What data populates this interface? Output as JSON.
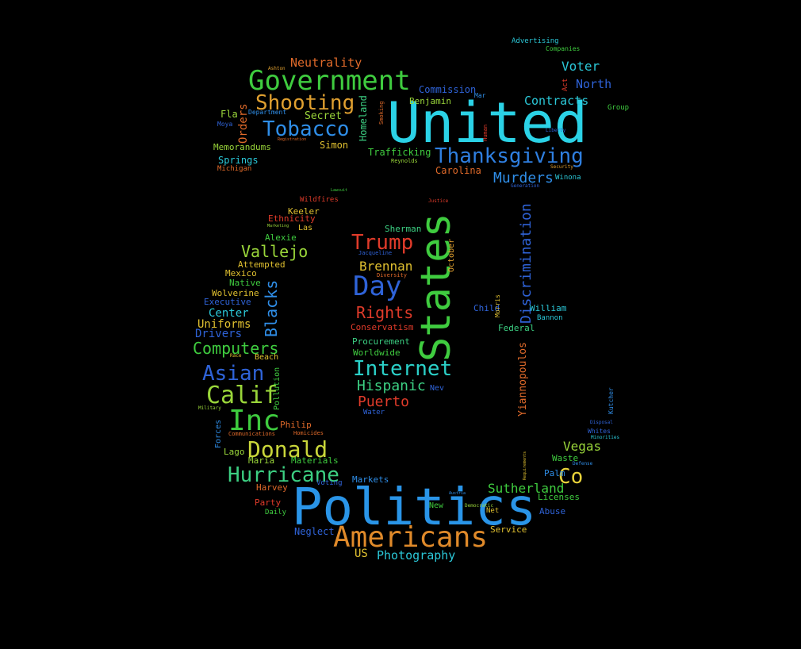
{
  "words": [
    {
      "text": "United",
      "color": "#2bd2e6"
    },
    {
      "text": "Politics",
      "color": "#2a95e8"
    },
    {
      "text": "States",
      "color": "#3fcc3f"
    },
    {
      "text": "Government",
      "color": "#3fcc3f"
    },
    {
      "text": "Americans",
      "color": "#e08a2a"
    },
    {
      "text": "Thanksgiving",
      "color": "#2f7fe0"
    },
    {
      "text": "Inc",
      "color": "#3fcc3f"
    },
    {
      "text": "Day",
      "color": "#2f63d8"
    },
    {
      "text": "Tobacco",
      "color": "#2f8ee8"
    },
    {
      "text": "Shooting",
      "color": "#e0a030"
    },
    {
      "text": "Hurricane",
      "color": "#3ccf82"
    },
    {
      "text": "Donald",
      "color": "#c9d63a"
    },
    {
      "text": "Internet",
      "color": "#2bd0c8"
    },
    {
      "text": "Calif",
      "color": "#9ad63a"
    },
    {
      "text": "Asian",
      "color": "#2f63d8"
    },
    {
      "text": "Trump",
      "color": "#e03b2a"
    },
    {
      "text": "Co",
      "color": "#e8d23a"
    },
    {
      "text": "Discrimination",
      "color": "#2f63d8"
    },
    {
      "text": "Computers",
      "color": "#3fcc3f"
    },
    {
      "text": "Vallejo",
      "color": "#9ad63a"
    },
    {
      "text": "Blacks",
      "color": "#2f8ee8"
    },
    {
      "text": "Rights",
      "color": "#e03b2a"
    },
    {
      "text": "Hispanic",
      "color": "#3ccf82"
    },
    {
      "text": "Puerto",
      "color": "#e03b2a"
    },
    {
      "text": "Murders",
      "color": "#2f8ee8"
    },
    {
      "text": "Contracts",
      "color": "#2bc8d8"
    },
    {
      "text": "Neutrality",
      "color": "#e06a2a"
    },
    {
      "text": "Sutherland",
      "color": "#3fcc3f"
    },
    {
      "text": "Brennan",
      "color": "#e0c030"
    },
    {
      "text": "Vegas",
      "color": "#9ad63a"
    },
    {
      "text": "Voter",
      "color": "#2bc8d8"
    },
    {
      "text": "North",
      "color": "#2f63d8"
    },
    {
      "text": "Photography",
      "color": "#2bc8d8"
    },
    {
      "text": "Yiannopoulos",
      "color": "#e06a2a"
    },
    {
      "text": "Uniforms",
      "color": "#e0c030"
    },
    {
      "text": "Center",
      "color": "#2bc8d8"
    },
    {
      "text": "Drivers",
      "color": "#2f63d8"
    },
    {
      "text": "Orders",
      "color": "#e06a2a"
    },
    {
      "text": "Secret",
      "color": "#9ad63a"
    },
    {
      "text": "Simon",
      "color": "#e0c030"
    },
    {
      "text": "Carolina",
      "color": "#e06a2a"
    },
    {
      "text": "Commission",
      "color": "#2f63d8"
    },
    {
      "text": "Benjamin",
      "color": "#9ad63a"
    },
    {
      "text": "Trafficking",
      "color": "#3fcc3f"
    },
    {
      "text": "Homeland",
      "color": "#3ccf82"
    },
    {
      "text": "Memorandums",
      "color": "#9ad63a"
    },
    {
      "text": "Springs",
      "color": "#2bc8d8"
    },
    {
      "text": "Fla",
      "color": "#9ad63a"
    },
    {
      "text": "Sherman",
      "color": "#3ccf82"
    },
    {
      "text": "Keeler",
      "color": "#e0c030"
    },
    {
      "text": "Ethnicity",
      "color": "#e03b2a"
    },
    {
      "text": "Las",
      "color": "#e0c030"
    },
    {
      "text": "Alexie",
      "color": "#3fcc3f"
    },
    {
      "text": "Attempted",
      "color": "#e0c030"
    },
    {
      "text": "Mexico",
      "color": "#e0c030"
    },
    {
      "text": "Native",
      "color": "#3fcc3f"
    },
    {
      "text": "Wolverine",
      "color": "#e0c030"
    },
    {
      "text": "Executive",
      "color": "#2f63d8"
    },
    {
      "text": "Conservatism",
      "color": "#e03b2a"
    },
    {
      "text": "Procurement",
      "color": "#3ccf82"
    },
    {
      "text": "Worldwide",
      "color": "#3fcc3f"
    },
    {
      "text": "Child",
      "color": "#2f63d8"
    },
    {
      "text": "William",
      "color": "#2bc8d8"
    },
    {
      "text": "Federal",
      "color": "#3ccf82"
    },
    {
      "text": "Bannon",
      "color": "#2bc8d8"
    },
    {
      "text": "October",
      "color": "#e0a030"
    },
    {
      "text": "Philip",
      "color": "#e06a2a"
    },
    {
      "text": "Lago",
      "color": "#9ad63a"
    },
    {
      "text": "Maria",
      "color": "#9ad63a"
    },
    {
      "text": "Materials",
      "color": "#3fcc3f"
    },
    {
      "text": "Harvey",
      "color": "#e06a2a"
    },
    {
      "text": "Party",
      "color": "#e03b2a"
    },
    {
      "text": "Daily",
      "color": "#3fcc3f"
    },
    {
      "text": "Neglect",
      "color": "#2f63d8"
    },
    {
      "text": "US",
      "color": "#e0c030"
    },
    {
      "text": "Voting",
      "color": "#2f63d8"
    },
    {
      "text": "Markets",
      "color": "#2f8ee8"
    },
    {
      "text": "New",
      "color": "#3fcc3f"
    },
    {
      "text": "Net",
      "color": "#e0c030"
    },
    {
      "text": "Service",
      "color": "#e0c030"
    },
    {
      "text": "Abuse",
      "color": "#2f63d8"
    },
    {
      "text": "Licenses",
      "color": "#3fcc3f"
    },
    {
      "text": "Palm",
      "color": "#2f8ee8"
    },
    {
      "text": "Waste",
      "color": "#3fcc3f"
    },
    {
      "text": "Beach",
      "color": "#e0c030"
    },
    {
      "text": "Pollution",
      "color": "#3fcc3f"
    },
    {
      "text": "Forces",
      "color": "#2f8ee8"
    },
    {
      "text": "Nev",
      "color": "#2f63d8"
    },
    {
      "text": "Water",
      "color": "#2f63d8"
    },
    {
      "text": "Advertising",
      "color": "#2bc8d8"
    },
    {
      "text": "Companies",
      "color": "#3fcc3f"
    },
    {
      "text": "Act",
      "color": "#e03b2a"
    },
    {
      "text": "Group",
      "color": "#3fcc3f"
    },
    {
      "text": "Winona",
      "color": "#2bc8d8"
    },
    {
      "text": "Michigan",
      "color": "#e06a2a"
    },
    {
      "text": "Mar",
      "color": "#2f8ee8"
    },
    {
      "text": "Department",
      "color": "#2f8ee8"
    },
    {
      "text": "Wildfires",
      "color": "#e03b2a"
    },
    {
      "text": "Kutcher",
      "color": "#2f8ee8"
    },
    {
      "text": "Whites",
      "color": "#2f63d8"
    },
    {
      "text": "Morris",
      "color": "#e0c030"
    },
    {
      "text": "Smoking",
      "color": "#e06a2a"
    },
    {
      "text": "Human",
      "color": "#e03b2a"
    },
    {
      "text": "Reynolds",
      "color": "#9ad63a"
    },
    {
      "text": "Homicides",
      "color": "#e06a2a"
    },
    {
      "text": "Communications",
      "color": "#e06a2a"
    },
    {
      "text": "Diversity",
      "color": "#e06a2a"
    },
    {
      "text": "Jacqueline",
      "color": "#2f63d8"
    },
    {
      "text": "Military",
      "color": "#9ad63a"
    },
    {
      "text": "Requirements",
      "color": "#e0c030"
    },
    {
      "text": "Minorities",
      "color": "#2bc8d8"
    },
    {
      "text": "Defense",
      "color": "#2f8ee8"
    },
    {
      "text": "Democratic",
      "color": "#9ad63a"
    },
    {
      "text": "Ashton",
      "color": "#e0a030"
    },
    {
      "text": "Moya",
      "color": "#2f63d8"
    },
    {
      "text": "Registration",
      "color": "#e06a2a"
    },
    {
      "text": "Liberty",
      "color": "#2f63d8"
    },
    {
      "text": "Security",
      "color": "#e0a030"
    },
    {
      "text": "Generation",
      "color": "#2f63d8"
    },
    {
      "text": "Justice",
      "color": "#e03b2a"
    },
    {
      "text": "Marketing",
      "color": "#9ad63a"
    },
    {
      "text": "Race",
      "color": "#e0c030"
    },
    {
      "text": "Lawsuit",
      "color": "#3fcc3f"
    },
    {
      "text": "Austria",
      "color": "#2f8ee8"
    },
    {
      "text": "Disposal",
      "color": "#2f63d8"
    }
  ]
}
